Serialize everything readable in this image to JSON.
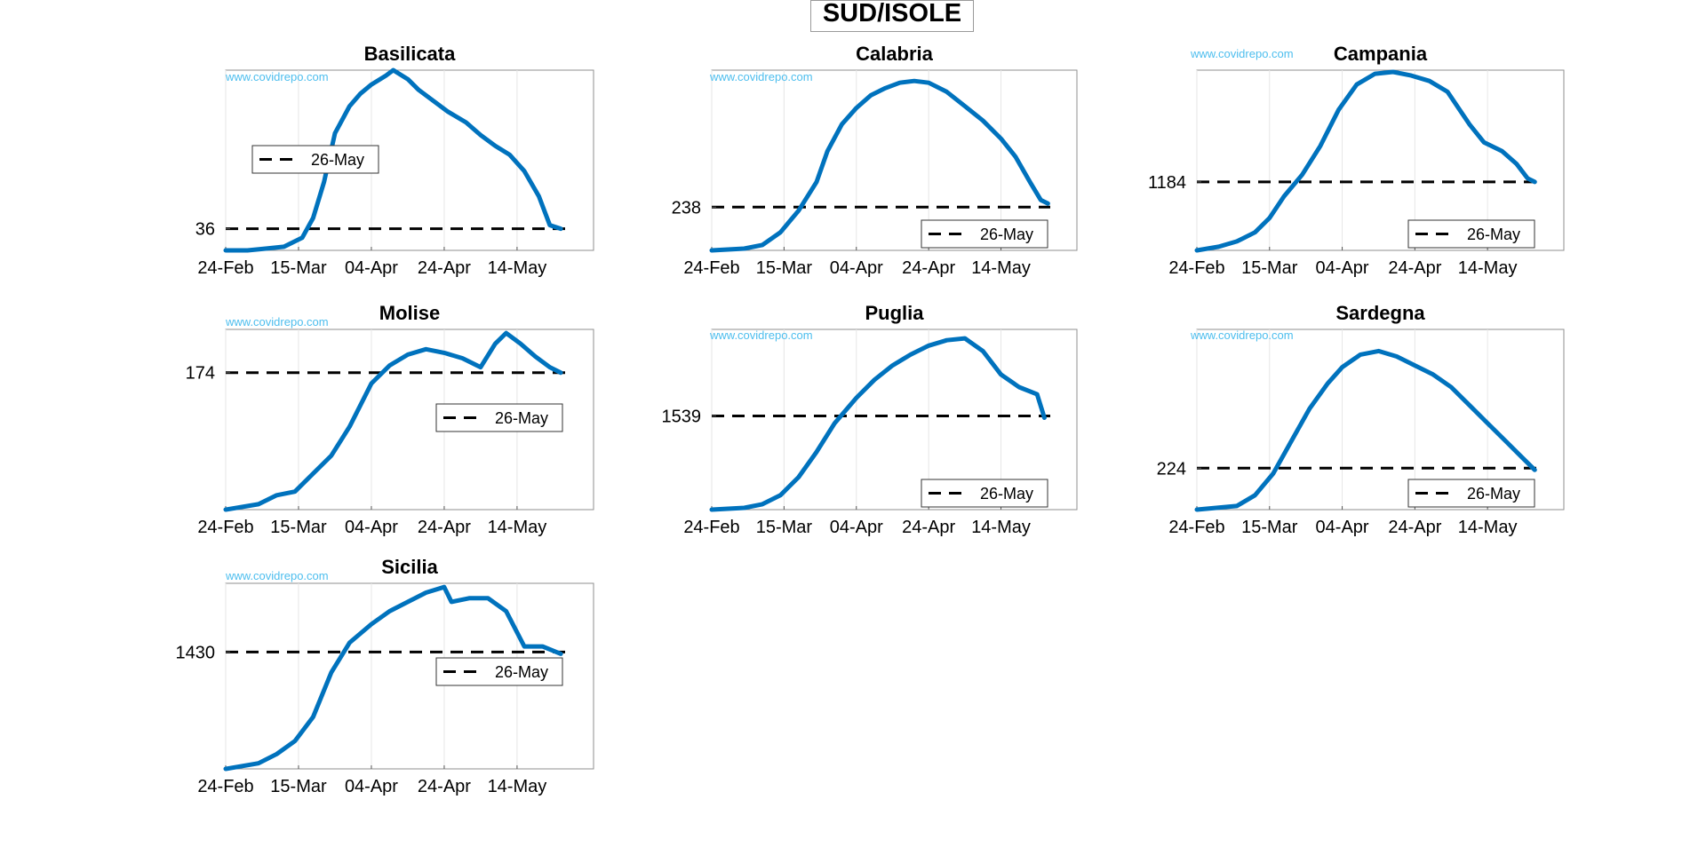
{
  "figure": {
    "title": "SUD/ISOLE",
    "watermark": "www.covidrepo.com",
    "x_tick_labels": [
      "24-Feb",
      "15-Mar",
      "04-Apr",
      "24-Apr",
      "14-May"
    ],
    "legend_label": "26-May",
    "colors": {
      "line": "#0072BD",
      "reference": "#000000",
      "watermark": "#4DBEEE"
    }
  },
  "chart_data": [
    {
      "type": "line",
      "title": "Basilicata",
      "xlabel": "",
      "ylabel": "",
      "x_range": [
        "24-Feb",
        "04-Jun"
      ],
      "y_ticks": [
        36
      ],
      "grid": true,
      "legend_placement": "upper-left",
      "series": [
        {
          "name": "",
          "points": [
            [
              "24-Feb",
              0
            ],
            [
              "01-Mar",
              0
            ],
            [
              "06-Mar",
              1
            ],
            [
              "11-Mar",
              2
            ],
            [
              "16-Mar",
              7
            ],
            [
              "19-Mar",
              18
            ],
            [
              "22-Mar",
              38
            ],
            [
              "25-Mar",
              65
            ],
            [
              "29-Mar",
              80
            ],
            [
              "01-Apr",
              87
            ],
            [
              "04-Apr",
              92
            ],
            [
              "08-Apr",
              97
            ],
            [
              "10-Apr",
              100
            ],
            [
              "14-Apr",
              95
            ],
            [
              "17-Apr",
              89
            ],
            [
              "21-Apr",
              83
            ],
            [
              "25-Apr",
              77
            ],
            [
              "30-Apr",
              71
            ],
            [
              "04-May",
              64
            ],
            [
              "08-May",
              58
            ],
            [
              "12-May",
              53
            ],
            [
              "16-May",
              44
            ],
            [
              "20-May",
              30
            ],
            [
              "23-May",
              14
            ],
            [
              "26-May",
              12
            ]
          ]
        }
      ],
      "reference": {
        "label": "26-May",
        "value": 36
      }
    },
    {
      "type": "line",
      "title": "Calabria",
      "xlabel": "",
      "ylabel": "",
      "x_range": [
        "24-Feb",
        "04-Jun"
      ],
      "y_ticks": [
        238
      ],
      "grid": true,
      "legend_placement": "lower-right",
      "series": [
        {
          "name": "",
          "points": [
            [
              "24-Feb",
              0
            ],
            [
              "04-Mar",
              1
            ],
            [
              "09-Mar",
              3
            ],
            [
              "14-Mar",
              10
            ],
            [
              "19-Mar",
              22
            ],
            [
              "24-Mar",
              38
            ],
            [
              "27-Mar",
              55
            ],
            [
              "31-Mar",
              70
            ],
            [
              "04-Apr",
              79
            ],
            [
              "08-Apr",
              86
            ],
            [
              "12-Apr",
              90
            ],
            [
              "16-Apr",
              93
            ],
            [
              "20-Apr",
              94
            ],
            [
              "24-Apr",
              93
            ],
            [
              "29-Apr",
              88
            ],
            [
              "04-May",
              80
            ],
            [
              "09-May",
              72
            ],
            [
              "14-May",
              62
            ],
            [
              "18-May",
              52
            ],
            [
              "22-May",
              38
            ],
            [
              "25-May",
              28
            ],
            [
              "27-May",
              26
            ]
          ]
        }
      ],
      "reference": {
        "label": "26-May",
        "value": 238
      }
    },
    {
      "type": "line",
      "title": "Campania",
      "xlabel": "",
      "ylabel": "",
      "x_range": [
        "24-Feb",
        "04-Jun"
      ],
      "y_ticks": [
        1184
      ],
      "grid": true,
      "legend_placement": "lower-right",
      "series": [
        {
          "name": "",
          "points": [
            [
              "24-Feb",
              0
            ],
            [
              "01-Mar",
              2
            ],
            [
              "06-Mar",
              5
            ],
            [
              "11-Mar",
              10
            ],
            [
              "15-Mar",
              18
            ],
            [
              "19-Mar",
              30
            ],
            [
              "24-Mar",
              42
            ],
            [
              "29-Mar",
              58
            ],
            [
              "03-Apr",
              78
            ],
            [
              "08-Apr",
              92
            ],
            [
              "13-Apr",
              98
            ],
            [
              "18-Apr",
              99
            ],
            [
              "23-Apr",
              97
            ],
            [
              "28-Apr",
              94
            ],
            [
              "03-May",
              88
            ],
            [
              "09-May",
              70
            ],
            [
              "13-May",
              60
            ],
            [
              "18-May",
              55
            ],
            [
              "22-May",
              48
            ],
            [
              "25-May",
              40
            ],
            [
              "27-May",
              38
            ]
          ]
        }
      ],
      "reference": {
        "label": "26-May",
        "value": 1184
      }
    },
    {
      "type": "line",
      "title": "Molise",
      "xlabel": "",
      "ylabel": "",
      "x_range": [
        "24-Feb",
        "04-Jun"
      ],
      "y_ticks": [
        174
      ],
      "grid": true,
      "legend_placement": "center-right",
      "series": [
        {
          "name": "",
          "points": [
            [
              "24-Feb",
              0
            ],
            [
              "04-Mar",
              3
            ],
            [
              "09-Mar",
              8
            ],
            [
              "14-Mar",
              10
            ],
            [
              "19-Mar",
              20
            ],
            [
              "24-Mar",
              30
            ],
            [
              "29-Mar",
              46
            ],
            [
              "04-Apr",
              70
            ],
            [
              "09-Apr",
              80
            ],
            [
              "14-Apr",
              86
            ],
            [
              "19-Apr",
              89
            ],
            [
              "24-Apr",
              87
            ],
            [
              "29-Apr",
              84
            ],
            [
              "04-May",
              79
            ],
            [
              "08-May",
              92
            ],
            [
              "11-May",
              98
            ],
            [
              "15-May",
              92
            ],
            [
              "19-May",
              85
            ],
            [
              "23-May",
              79
            ],
            [
              "26-May",
              76
            ]
          ]
        }
      ],
      "reference": {
        "label": "26-May",
        "value": 174
      }
    },
    {
      "type": "line",
      "title": "Puglia",
      "xlabel": "",
      "ylabel": "",
      "x_range": [
        "24-Feb",
        "04-Jun"
      ],
      "y_ticks": [
        1539
      ],
      "grid": true,
      "legend_placement": "lower-right",
      "series": [
        {
          "name": "",
          "points": [
            [
              "24-Feb",
              0
            ],
            [
              "04-Mar",
              1
            ],
            [
              "09-Mar",
              3
            ],
            [
              "14-Mar",
              8
            ],
            [
              "19-Mar",
              18
            ],
            [
              "24-Mar",
              32
            ],
            [
              "29-Mar",
              48
            ],
            [
              "04-Apr",
              62
            ],
            [
              "09-Apr",
              72
            ],
            [
              "14-Apr",
              80
            ],
            [
              "19-Apr",
              86
            ],
            [
              "24-Apr",
              91
            ],
            [
              "29-Apr",
              94
            ],
            [
              "04-May",
              95
            ],
            [
              "09-May",
              88
            ],
            [
              "14-May",
              75
            ],
            [
              "19-May",
              68
            ],
            [
              "24-May",
              64
            ],
            [
              "26-May",
              51
            ]
          ]
        }
      ],
      "reference": {
        "label": "26-May",
        "value": 1539
      }
    },
    {
      "type": "line",
      "title": "Sardegna",
      "xlabel": "",
      "ylabel": "",
      "x_range": [
        "24-Feb",
        "04-Jun"
      ],
      "y_ticks": [
        224
      ],
      "grid": true,
      "legend_placement": "lower-right",
      "series": [
        {
          "name": "",
          "points": [
            [
              "24-Feb",
              0
            ],
            [
              "06-Mar",
              2
            ],
            [
              "11-Mar",
              8
            ],
            [
              "16-Mar",
              20
            ],
            [
              "21-Mar",
              38
            ],
            [
              "26-Mar",
              56
            ],
            [
              "31-Mar",
              70
            ],
            [
              "04-Apr",
              79
            ],
            [
              "09-Apr",
              86
            ],
            [
              "14-Apr",
              88
            ],
            [
              "19-Apr",
              85
            ],
            [
              "24-Apr",
              80
            ],
            [
              "29-Apr",
              75
            ],
            [
              "04-May",
              68
            ],
            [
              "09-May",
              58
            ],
            [
              "14-May",
              48
            ],
            [
              "19-May",
              38
            ],
            [
              "24-May",
              28
            ],
            [
              "27-May",
              22
            ]
          ]
        }
      ],
      "reference": {
        "label": "26-May",
        "value": 224
      }
    },
    {
      "type": "line",
      "title": "Sicilia",
      "xlabel": "",
      "ylabel": "",
      "x_range": [
        "24-Feb",
        "04-Jun"
      ],
      "y_ticks": [
        1430
      ],
      "grid": true,
      "legend_placement": "center-right",
      "series": [
        {
          "name": "",
          "points": [
            [
              "24-Feb",
              0
            ],
            [
              "04-Mar",
              3
            ],
            [
              "09-Mar",
              8
            ],
            [
              "14-Mar",
              15
            ],
            [
              "19-Mar",
              28
            ],
            [
              "24-Mar",
              52
            ],
            [
              "29-Mar",
              68
            ],
            [
              "04-Apr",
              78
            ],
            [
              "09-Apr",
              85
            ],
            [
              "14-Apr",
              90
            ],
            [
              "19-Apr",
              95
            ],
            [
              "24-Apr",
              98
            ],
            [
              "26-Apr",
              90
            ],
            [
              "01-May",
              92
            ],
            [
              "06-May",
              92
            ],
            [
              "11-May",
              85
            ],
            [
              "16-May",
              66
            ],
            [
              "21-May",
              66
            ],
            [
              "26-May",
              62
            ]
          ]
        }
      ],
      "reference": {
        "label": "26-May",
        "value": 1430
      }
    }
  ]
}
